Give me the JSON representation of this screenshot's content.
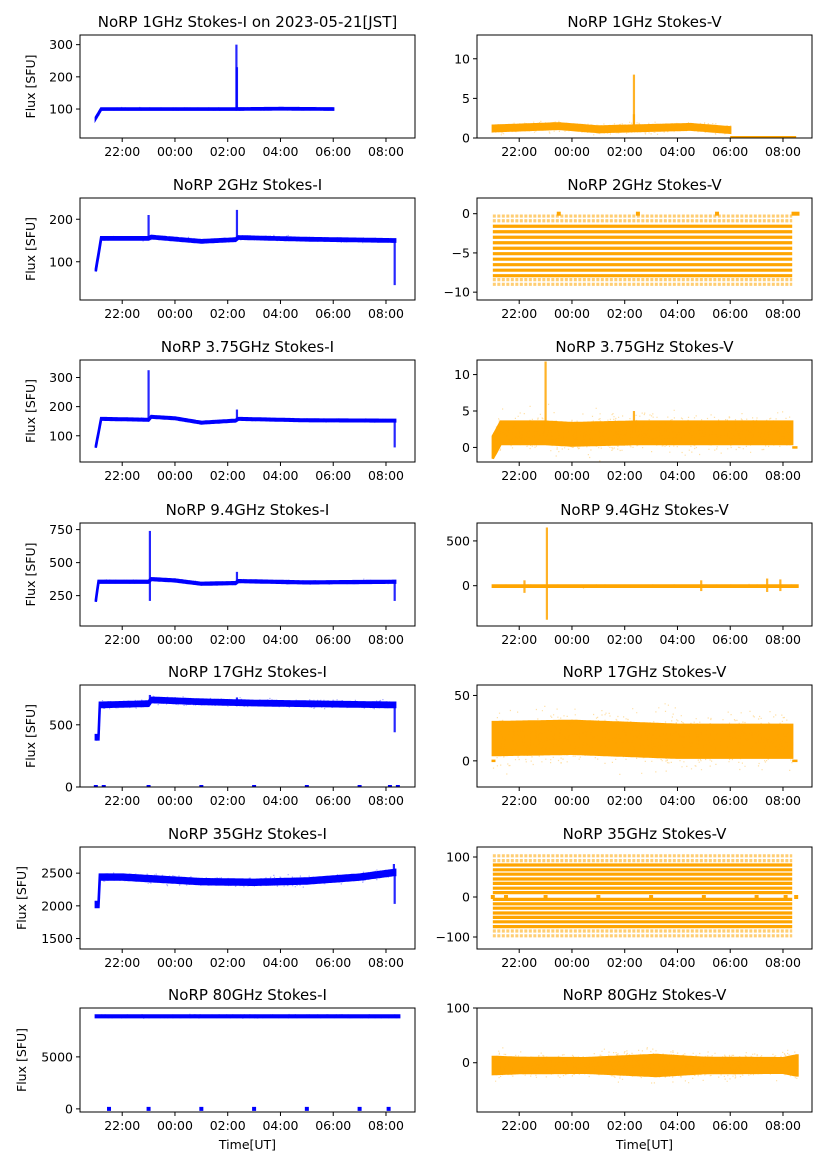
{
  "figure": {
    "xlabel": "Time[UT]",
    "ylabel": "Flux [SFU]",
    "x_ticks": [
      "22:00",
      "00:00",
      "02:00",
      "04:00",
      "06:00",
      "08:00"
    ],
    "x_range_hours": [
      20.4,
      33.1
    ],
    "colors": {
      "stokes_i": "#0000ff",
      "stokes_v": "#ffa500"
    }
  },
  "chart_data": [
    {
      "type": "scatter",
      "title": "NoRP 1GHz Stokes-I on 2023-05-21[JST]",
      "ylabel": "Flux [SFU]",
      "xlabel": "",
      "ylim": [
        10,
        330
      ],
      "yticks": [
        100,
        200,
        300
      ],
      "series": [
        {
          "name": "Stokes-I",
          "color": "#0000ff",
          "start": 21.0,
          "end": 30.0,
          "baseline": [
            [
              21.0,
              72
            ],
            [
              21.2,
              100
            ],
            [
              23.0,
              100
            ],
            [
              26.3,
              100
            ],
            [
              28.0,
              101
            ],
            [
              30.0,
              100
            ]
          ],
          "spread": 3,
          "spikes": [
            [
              26.33,
              300
            ],
            [
              26.35,
              230
            ]
          ]
        }
      ]
    },
    {
      "type": "scatter",
      "title": "NoRP 1GHz Stokes-V",
      "ylabel": "",
      "xlabel": "",
      "ylim": [
        0,
        13
      ],
      "yticks": [
        0,
        5,
        10
      ],
      "series": [
        {
          "name": "Stokes-V",
          "color": "#ffa500",
          "start": 21.0,
          "end": 30.0,
          "baseline": [
            [
              21.0,
              1.2
            ],
            [
              23.5,
              1.5
            ],
            [
              25.0,
              1.1
            ],
            [
              28.5,
              1.4
            ],
            [
              30.0,
              1.0
            ]
          ],
          "spread": 0.5,
          "spikes": [
            [
              26.35,
              8
            ],
            [
              26.35,
              3
            ]
          ],
          "tail": [
            [
              30.0,
              32.5,
              0.1
            ]
          ]
        }
      ]
    },
    {
      "type": "scatter",
      "title": "NoRP 2GHz Stokes-I",
      "ylabel": "Flux [SFU]",
      "xlabel": "",
      "ylim": [
        10,
        250
      ],
      "yticks": [
        100,
        200
      ],
      "series": [
        {
          "name": "Stokes-I",
          "color": "#0000ff",
          "start": 21.0,
          "end": 32.35,
          "baseline": [
            [
              21.0,
              80
            ],
            [
              21.2,
              155
            ],
            [
              23.0,
              155
            ],
            [
              23.1,
              158
            ],
            [
              25.0,
              148
            ],
            [
              26.3,
              152
            ],
            [
              26.4,
              157
            ],
            [
              29.0,
              153
            ],
            [
              32.3,
              150
            ]
          ],
          "spread": 4,
          "spikes": [
            [
              23.0,
              210
            ],
            [
              26.35,
              222
            ],
            [
              32.33,
              45
            ]
          ]
        }
      ]
    },
    {
      "type": "scatter",
      "title": "NoRP 2GHz Stokes-V",
      "ylabel": "",
      "xlabel": "",
      "ylim": [
        -11,
        2
      ],
      "yticks": [
        0,
        -5,
        -10
      ],
      "series": [
        {
          "name": "Stokes-V",
          "color": "#ffa500",
          "start": 21.0,
          "end": 32.35,
          "levels": [
            -0.3,
            -0.9,
            -1.6,
            -2.3,
            -3.0,
            -3.7,
            -4.4,
            -5.1,
            -5.8,
            -6.5,
            -7.2,
            -7.9,
            -8.4,
            -9.0
          ],
          "markers": [
            [
              23.5,
              0
            ],
            [
              26.5,
              0
            ],
            [
              29.5,
              0
            ],
            [
              32.4,
              0
            ],
            [
              32.55,
              0
            ]
          ]
        }
      ]
    },
    {
      "type": "scatter",
      "title": "NoRP 3.75GHz Stokes-I",
      "ylabel": "Flux [SFU]",
      "xlabel": "",
      "ylim": [
        10,
        360
      ],
      "yticks": [
        100,
        200,
        300
      ],
      "series": [
        {
          "name": "Stokes-I",
          "color": "#0000ff",
          "start": 21.0,
          "end": 32.35,
          "baseline": [
            [
              21.0,
              62
            ],
            [
              21.2,
              158
            ],
            [
              23.0,
              155
            ],
            [
              23.1,
              165
            ],
            [
              24.0,
              160
            ],
            [
              25.0,
              145
            ],
            [
              26.3,
              152
            ],
            [
              26.4,
              158
            ],
            [
              29.0,
              153
            ],
            [
              32.3,
              152
            ]
          ],
          "spread": 4,
          "spikes": [
            [
              23.0,
              325
            ],
            [
              26.35,
              190
            ],
            [
              32.33,
              60
            ]
          ]
        }
      ]
    },
    {
      "type": "scatter",
      "title": "NoRP 3.75GHz Stokes-V",
      "ylabel": "",
      "xlabel": "",
      "ylim": [
        -2,
        12
      ],
      "yticks": [
        0,
        5,
        10
      ],
      "series": [
        {
          "name": "Stokes-V",
          "color": "#ffa500",
          "start": 21.0,
          "end": 32.35,
          "baseline": [
            [
              21.0,
              0
            ],
            [
              21.3,
              2
            ],
            [
              23.0,
              2
            ],
            [
              24.0,
              1.8
            ],
            [
              26.4,
              2
            ],
            [
              29.5,
              2
            ],
            [
              32.3,
              2
            ]
          ],
          "spread": 2.2,
          "spikes": [
            [
              23.0,
              11.8
            ],
            [
              26.35,
              5
            ]
          ],
          "tail": [
            [
              32.35,
              32.55,
              0
            ]
          ]
        }
      ]
    },
    {
      "type": "scatter",
      "title": "NoRP 9.4GHz Stokes-I",
      "ylabel": "Flux [SFU]",
      "xlabel": "",
      "ylim": [
        20,
        800
      ],
      "yticks": [
        250,
        500,
        750
      ],
      "series": [
        {
          "name": "Stokes-I",
          "color": "#0000ff",
          "start": 21.0,
          "end": 32.35,
          "baseline": [
            [
              21.0,
              210
            ],
            [
              21.1,
              355
            ],
            [
              23.0,
              355
            ],
            [
              23.1,
              375
            ],
            [
              24.0,
              365
            ],
            [
              25.0,
              340
            ],
            [
              26.3,
              345
            ],
            [
              26.4,
              360
            ],
            [
              29.0,
              350
            ],
            [
              32.3,
              355
            ]
          ],
          "spread": 10,
          "spikes": [
            [
              23.05,
              740
            ],
            [
              23.05,
              210
            ],
            [
              26.35,
              430
            ],
            [
              32.33,
              210
            ]
          ]
        }
      ]
    },
    {
      "type": "scatter",
      "title": "NoRP 9.4GHz Stokes-V",
      "ylabel": "",
      "xlabel": "",
      "ylim": [
        -450,
        700
      ],
      "yticks": [
        0,
        500
      ],
      "series": [
        {
          "name": "Stokes-V",
          "color": "#ffa500",
          "start": 21.0,
          "end": 32.55,
          "baseline": [
            [
              21.0,
              -5
            ],
            [
              32.55,
              -5
            ]
          ],
          "spread": 10,
          "spikes": [
            [
              23.05,
              650
            ],
            [
              23.05,
              -380
            ],
            [
              22.2,
              60
            ],
            [
              22.2,
              -80
            ],
            [
              31.4,
              80
            ],
            [
              31.4,
              -70
            ],
            [
              31.9,
              70
            ],
            [
              31.9,
              -60
            ],
            [
              28.9,
              60
            ],
            [
              28.9,
              -60
            ]
          ]
        }
      ]
    },
    {
      "type": "scatter",
      "title": "NoRP 17GHz Stokes-I",
      "ylabel": "Flux [SFU]",
      "xlabel": "",
      "ylim": [
        0,
        820
      ],
      "yticks": [
        0,
        500
      ],
      "series": [
        {
          "name": "Stokes-I",
          "color": "#0000ff",
          "start": 21.0,
          "end": 32.35,
          "baseline": [
            [
              21.1,
              400
            ],
            [
              21.15,
              660
            ],
            [
              23.0,
              670
            ],
            [
              23.1,
              700
            ],
            [
              25.0,
              685
            ],
            [
              27.0,
              675
            ],
            [
              32.3,
              660
            ]
          ],
          "spread": 25,
          "spikes": [
            [
              23.05,
              740
            ],
            [
              26.35,
              720
            ],
            [
              32.33,
              440
            ]
          ],
          "markers": [
            [
              21.0,
              0
            ],
            [
              21.3,
              0
            ],
            [
              23.0,
              0
            ],
            [
              25.0,
              0
            ],
            [
              27.0,
              0
            ],
            [
              29.0,
              0
            ],
            [
              31.0,
              0
            ],
            [
              32.15,
              0
            ],
            [
              32.45,
              0
            ]
          ]
        }
      ]
    },
    {
      "type": "scatter",
      "title": "NoRP 17GHz Stokes-V",
      "ylabel": "",
      "xlabel": "",
      "ylim": [
        -20,
        58
      ],
      "yticks": [
        0,
        50
      ],
      "series": [
        {
          "name": "Stokes-V",
          "color": "#ffa500",
          "start": 21.0,
          "end": 32.35,
          "baseline": [
            [
              21.0,
              17
            ],
            [
              24.0,
              18
            ],
            [
              28.0,
              15
            ],
            [
              32.3,
              15
            ]
          ],
          "spread": 18,
          "tail": [
            [
              20.95,
              21.1,
              0
            ],
            [
              32.35,
              32.55,
              0
            ]
          ]
        }
      ]
    },
    {
      "type": "scatter",
      "title": "NoRP 35GHz Stokes-I",
      "ylabel": "Flux [SFU]",
      "xlabel": "",
      "ylim": [
        1340,
        2900
      ],
      "yticks": [
        1500,
        2000,
        2500
      ],
      "series": [
        {
          "name": "Stokes-I",
          "color": "#0000ff",
          "start": 21.0,
          "end": 32.35,
          "baseline": [
            [
              21.1,
              2020
            ],
            [
              21.15,
              2440
            ],
            [
              22.0,
              2440
            ],
            [
              25.0,
              2370
            ],
            [
              27.0,
              2360
            ],
            [
              29.0,
              2380
            ],
            [
              31.0,
              2440
            ],
            [
              32.3,
              2510
            ]
          ],
          "spread": 55,
          "spikes": [
            [
              32.3,
              2640
            ],
            [
              32.33,
              2030
            ]
          ]
        }
      ]
    },
    {
      "type": "scatter",
      "title": "NoRP 35GHz Stokes-V",
      "ylabel": "",
      "xlabel": "",
      "ylim": [
        -130,
        125
      ],
      "yticks": [
        -100,
        0,
        100
      ],
      "series": [
        {
          "name": "Stokes-V",
          "color": "#ffa500",
          "start": 21.0,
          "end": 32.35,
          "levels": [
            103,
            91,
            80,
            68,
            57,
            45,
            34,
            22,
            11,
            -6,
            -17,
            -28,
            -40,
            -51,
            -62,
            -74,
            -85,
            -97
          ],
          "markers": [
            [
              21.0,
              0
            ],
            [
              21.5,
              0
            ],
            [
              23.0,
              0
            ],
            [
              25.0,
              0
            ],
            [
              27.0,
              0
            ],
            [
              29.0,
              0
            ],
            [
              31.0,
              0
            ],
            [
              32.1,
              0
            ],
            [
              32.5,
              0
            ]
          ]
        }
      ]
    },
    {
      "type": "scatter",
      "title": "NoRP 80GHz Stokes-I",
      "ylabel": "Flux [SFU]",
      "xlabel": "Time[UT]",
      "ylim": [
        -300,
        9700
      ],
      "yticks": [
        0,
        5000
      ],
      "series": [
        {
          "name": "Stokes-I",
          "color": "#0000ff",
          "start": 21.0,
          "end": 32.5,
          "baseline": [
            [
              21.0,
              8900
            ],
            [
              32.5,
              8900
            ]
          ],
          "spread": 120,
          "markers": [
            [
              21.5,
              0
            ],
            [
              23.0,
              0
            ],
            [
              25.0,
              0
            ],
            [
              27.0,
              0
            ],
            [
              29.0,
              0
            ],
            [
              31.0,
              0
            ],
            [
              32.1,
              0
            ]
          ]
        }
      ]
    },
    {
      "type": "scatter",
      "title": "NoRP 80GHz Stokes-V",
      "ylabel": "",
      "xlabel": "Time[UT]",
      "ylim": [
        -90,
        100
      ],
      "yticks": [
        0,
        100
      ],
      "series": [
        {
          "name": "Stokes-V",
          "color": "#ffa500",
          "start": 21.0,
          "end": 32.55,
          "baseline": [
            [
              21.0,
              -5
            ],
            [
              32.55,
              -5
            ]
          ],
          "envelope": [
            [
              21.0,
              45
            ],
            [
              22.0,
              40
            ],
            [
              24.5,
              38
            ],
            [
              27.2,
              55
            ],
            [
              29.0,
              40
            ],
            [
              32.0,
              38
            ],
            [
              32.5,
              52
            ]
          ],
          "spread": 40
        }
      ]
    }
  ]
}
